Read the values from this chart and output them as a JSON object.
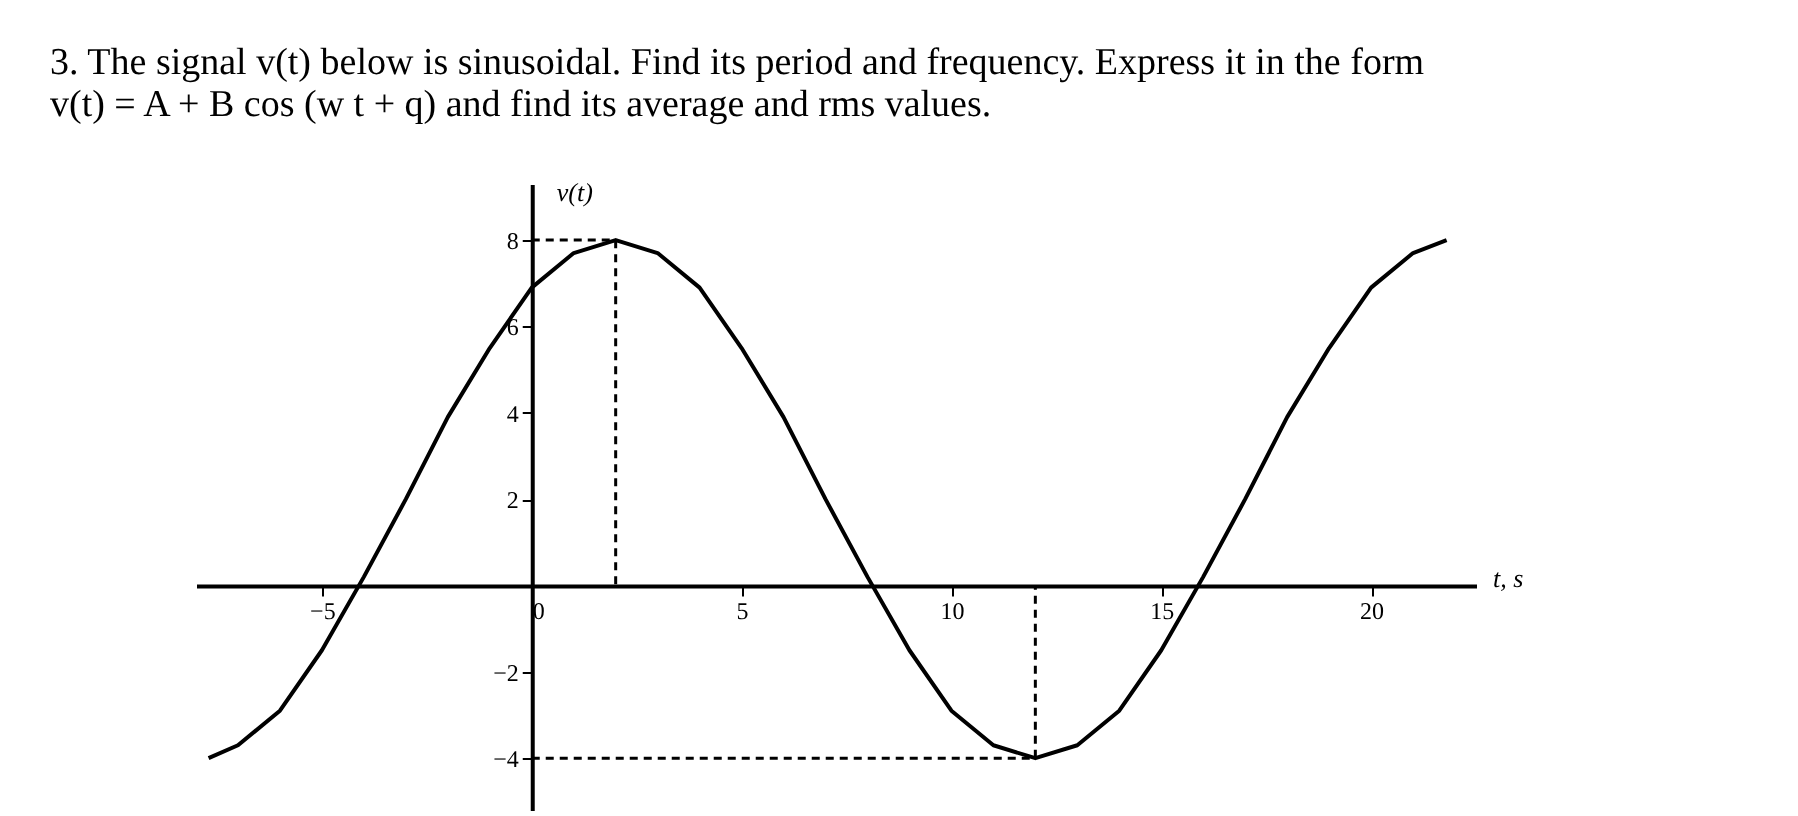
{
  "chart_data": {
    "type": "line",
    "title": "3. The signal v(t) below is sinusoidal. Find its period and frequency. Express it in the form",
    "subtitle": "v(t) = A + B cos (w t + q) and find its average and rms values.",
    "xlabel": "t, s",
    "ylabel": "v(t)",
    "xlim": [
      -8,
      22.5
    ],
    "ylim": [
      -5.2,
      9.3
    ],
    "xticks": [
      -5,
      0,
      5,
      10,
      15,
      20
    ],
    "yticks": [
      -4,
      -2,
      2,
      4,
      6,
      8
    ],
    "series": [
      {
        "color": "#000000",
        "x": [
          -7.7,
          -7,
          -6,
          -5,
          -4,
          -3,
          -2,
          -1,
          0,
          1,
          2,
          3,
          4,
          5,
          6,
          7,
          8,
          9,
          10,
          11,
          12,
          13,
          14,
          15,
          16,
          17,
          18,
          19,
          20,
          21,
          21.8
        ],
        "values": [
          -4.0,
          -3.7,
          -2.9,
          -1.5,
          0.2,
          2.0,
          3.9,
          5.5,
          6.9,
          7.7,
          8.0,
          7.7,
          6.9,
          5.5,
          3.9,
          2.0,
          0.2,
          -1.5,
          -2.9,
          -3.7,
          -4.0,
          -3.7,
          -2.9,
          -1.5,
          0.2,
          2.0,
          3.9,
          5.5,
          6.9,
          7.7,
          8.0
        ]
      },
      {
        "color": "#000000",
        "line_style": "dashed",
        "x": [
          0,
          2,
          2
        ],
        "values": [
          8,
          8,
          0
        ]
      },
      {
        "color": "#000000",
        "line_style": "dashed",
        "x": [
          0,
          12,
          12
        ],
        "values": [
          -4,
          -4,
          0
        ]
      }
    ]
  }
}
